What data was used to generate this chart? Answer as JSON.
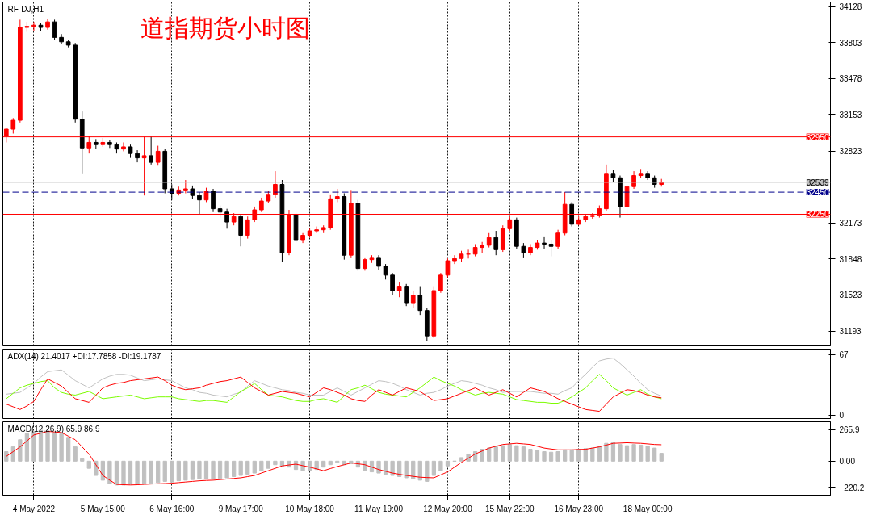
{
  "chart_data": [
    {
      "type": "candlestick",
      "title": "道指期货小时图",
      "annotations": [
        "RF-DJ,H1"
      ],
      "categories": [
        null,
        null,
        null,
        null,
        null,
        null,
        null,
        null,
        null,
        null,
        null,
        null,
        null,
        null,
        null,
        null,
        null,
        null,
        null,
        null,
        null,
        null,
        null,
        null,
        null,
        null,
        null,
        null,
        null,
        null,
        null,
        null,
        null,
        null,
        null,
        null,
        null,
        null,
        null,
        null,
        null,
        null,
        null,
        null,
        null,
        null,
        null,
        null,
        null,
        null,
        null,
        null,
        null,
        null,
        null,
        null,
        null,
        null,
        null,
        null,
        null,
        null,
        null,
        null,
        null,
        null,
        null,
        null,
        null,
        null,
        null,
        null,
        null,
        null,
        null,
        null,
        null,
        null,
        null,
        null,
        null,
        null,
        null,
        null,
        null,
        null,
        null,
        null,
        null,
        null,
        null,
        null,
        null,
        null,
        null,
        null,
        null,
        null,
        null,
        null,
        null,
        null,
        null,
        null,
        null,
        null,
        null,
        null,
        null,
        null,
        null,
        null,
        null,
        null,
        null,
        null,
        null,
        null,
        null,
        null
      ],
      "ohlc": [
        [
          32960,
          33030,
          32900,
          33020
        ],
        [
          33020,
          33120,
          32980,
          33100
        ],
        [
          33100,
          34010,
          33080,
          33940
        ],
        [
          33940,
          33990,
          33900,
          33950
        ],
        [
          33950,
          33990,
          33910,
          33960
        ],
        [
          33960,
          33980,
          33910,
          33940
        ],
        [
          33940,
          34020,
          33920,
          33990
        ],
        [
          33990,
          34010,
          33830,
          33850
        ],
        [
          33850,
          33880,
          33790,
          33810
        ],
        [
          33810,
          33830,
          33760,
          33780
        ],
        [
          33780,
          33800,
          33080,
          33110
        ],
        [
          33110,
          33180,
          32620,
          32850
        ],
        [
          32850,
          32960,
          32800,
          32900
        ],
        [
          32900,
          32930,
          32840,
          32880
        ],
        [
          32880,
          32940,
          32860,
          32900
        ],
        [
          32900,
          32920,
          32850,
          32880
        ],
        [
          32880,
          32900,
          32800,
          32840
        ],
        [
          32840,
          32900,
          32820,
          32860
        ],
        [
          32860,
          32880,
          32760,
          32800
        ],
        [
          32800,
          32830,
          32720,
          32760
        ],
        [
          32760,
          32950,
          32420,
          32780
        ],
        [
          32780,
          32960,
          32700,
          32720
        ],
        [
          32720,
          32870,
          32690,
          32820
        ],
        [
          32820,
          32840,
          32440,
          32480
        ],
        [
          32480,
          32520,
          32380,
          32440
        ],
        [
          32440,
          32500,
          32420,
          32470
        ],
        [
          32470,
          32560,
          32440,
          32480
        ],
        [
          32480,
          32510,
          32390,
          32420
        ],
        [
          32420,
          32450,
          32250,
          32380
        ],
        [
          32380,
          32490,
          32360,
          32460
        ],
        [
          32460,
          32480,
          32270,
          32300
        ],
        [
          32300,
          32330,
          32220,
          32270
        ],
        [
          32270,
          32300,
          32120,
          32180
        ],
        [
          32180,
          32260,
          32150,
          32230
        ],
        [
          32230,
          32250,
          31960,
          32060
        ],
        [
          32060,
          32230,
          32030,
          32200
        ],
        [
          32200,
          32320,
          32180,
          32290
        ],
        [
          32290,
          32400,
          32270,
          32370
        ],
        [
          32370,
          32460,
          32350,
          32430
        ],
        [
          32430,
          32640,
          32400,
          32520
        ],
        [
          32520,
          32560,
          31820,
          31900
        ],
        [
          31900,
          32290,
          31880,
          32250
        ],
        [
          32250,
          32270,
          31990,
          32020
        ],
        [
          32020,
          32080,
          31990,
          32060
        ],
        [
          32060,
          32120,
          32040,
          32100
        ],
        [
          32100,
          32140,
          32080,
          32110
        ],
        [
          32110,
          32150,
          32080,
          32130
        ],
        [
          32130,
          32430,
          32110,
          32390
        ],
        [
          32390,
          32480,
          32360,
          32410
        ],
        [
          32410,
          32440,
          31840,
          31880
        ],
        [
          31880,
          32470,
          31860,
          32350
        ],
        [
          32350,
          32380,
          31740,
          31760
        ],
        [
          31760,
          31860,
          31740,
          31840
        ],
        [
          31840,
          31880,
          31810,
          31860
        ],
        [
          31860,
          31880,
          31750,
          31780
        ],
        [
          31780,
          31800,
          31660,
          31700
        ],
        [
          31700,
          31720,
          31520,
          31560
        ],
        [
          31560,
          31640,
          31500,
          31600
        ],
        [
          31600,
          31620,
          31420,
          31450
        ],
        [
          31450,
          31560,
          31400,
          31520
        ],
        [
          31520,
          31600,
          31340,
          31380
        ],
        [
          31380,
          31400,
          31100,
          31150
        ],
        [
          31150,
          31600,
          31130,
          31560
        ],
        [
          31560,
          31720,
          31540,
          31700
        ],
        [
          31700,
          31850,
          31680,
          31830
        ],
        [
          31830,
          31880,
          31800,
          31850
        ],
        [
          31850,
          31920,
          31820,
          31890
        ],
        [
          31890,
          31930,
          31850,
          31890
        ],
        [
          31890,
          31980,
          31870,
          31950
        ],
        [
          31950,
          32000,
          31900,
          31970
        ],
        [
          31970,
          32080,
          31950,
          32040
        ],
        [
          32040,
          32100,
          31880,
          31930
        ],
        [
          31930,
          32150,
          31910,
          32120
        ],
        [
          32120,
          32230,
          32100,
          32200
        ],
        [
          32200,
          32220,
          31940,
          31960
        ],
        [
          31960,
          31990,
          31860,
          31900
        ],
        [
          31900,
          31980,
          31880,
          31950
        ],
        [
          31950,
          32020,
          31930,
          31990
        ],
        [
          31990,
          32050,
          31940,
          31980
        ],
        [
          31980,
          32020,
          31870,
          31960
        ],
        [
          31960,
          32110,
          31940,
          32080
        ],
        [
          32080,
          32450,
          32060,
          32340
        ],
        [
          32340,
          32360,
          32140,
          32160
        ],
        [
          32160,
          32230,
          32150,
          32200
        ],
        [
          32200,
          32250,
          32180,
          32230
        ],
        [
          32230,
          32260,
          32210,
          32240
        ],
        [
          32240,
          32330,
          32220,
          32300
        ],
        [
          32300,
          32700,
          32280,
          32620
        ],
        [
          32620,
          32650,
          32540,
          32580
        ],
        [
          32580,
          32600,
          32220,
          32320
        ],
        [
          32320,
          32520,
          32230,
          32500
        ],
        [
          32500,
          32640,
          32480,
          32600
        ],
        [
          32600,
          32660,
          32580,
          32620
        ],
        [
          32620,
          32640,
          32560,
          32580
        ],
        [
          32580,
          32600,
          32490,
          32520
        ],
        [
          32520,
          32570,
          32500,
          32539
        ],
        null,
        null,
        null,
        null,
        null,
        null,
        null,
        null,
        null,
        null,
        null,
        null,
        null,
        null,
        null,
        null,
        null,
        null,
        null,
        null,
        null,
        null,
        null,
        null
      ],
      "ylim": [
        31060,
        34170
      ],
      "yticks": [
        31193,
        31523,
        31848,
        32173,
        32823,
        33153,
        33478,
        33803,
        34128
      ],
      "ref_lines": [
        {
          "axis": "y",
          "value": 32950,
          "label": "32950",
          "color": "#ff0000",
          "line_style": "solid"
        },
        {
          "axis": "y",
          "value": 32539,
          "label": "32539",
          "color": "#c0c0c0",
          "line_style": "solid"
        },
        {
          "axis": "y",
          "value": 32450,
          "label": "32450",
          "color": "#00008b",
          "line_style": "dashed"
        },
        {
          "axis": "y",
          "value": 32250,
          "label": "32250",
          "color": "#ff0000",
          "line_style": "solid"
        }
      ],
      "grid": "x",
      "tick_labels": "y"
    },
    {
      "type": "line",
      "annotations": [
        "ADX(14) 21.4017 +DI:17.7858 -DI:19.1787"
      ],
      "categories": [
        null,
        null,
        null,
        null,
        null,
        null,
        null,
        null,
        null,
        null,
        null,
        null,
        null,
        null,
        null,
        null,
        null,
        null,
        null,
        null,
        null,
        null,
        null,
        null,
        null,
        null,
        null,
        null,
        null,
        null,
        null,
        null,
        null,
        null,
        null,
        null,
        null,
        null,
        null,
        null,
        null,
        null,
        null,
        null,
        null,
        null,
        null,
        null,
        null,
        null,
        null,
        null,
        null,
        null,
        null,
        null,
        null,
        null,
        null,
        null,
        null,
        null,
        null,
        null,
        null,
        null,
        null,
        null,
        null,
        null,
        null,
        null,
        null,
        null,
        null,
        null,
        null,
        null,
        null,
        null,
        null,
        null,
        null,
        null,
        null,
        null,
        null,
        null,
        null,
        null,
        null,
        null,
        null,
        null,
        null,
        null,
        null,
        null,
        null,
        null,
        null,
        null,
        null,
        null,
        null,
        null,
        null,
        null,
        null,
        null,
        null,
        null,
        null,
        null,
        null,
        null,
        null,
        null,
        null,
        null
      ],
      "series": [
        {
          "color": "#c0c0c0",
          "values": [
            23,
            24,
            25,
            30,
            35,
            42,
            48,
            49,
            50,
            44,
            38,
            34,
            30,
            35,
            40,
            43,
            45,
            45,
            44,
            41,
            38,
            39,
            40,
            39,
            38,
            34,
            30,
            28,
            25,
            24,
            22,
            21,
            20,
            23,
            25,
            32,
            38,
            35,
            32,
            30,
            28,
            27,
            25,
            24,
            22,
            22,
            22,
            26,
            30,
            26,
            22,
            26,
            30,
            34,
            38,
            37,
            35,
            32,
            28,
            25,
            22,
            24,
            25,
            28,
            32,
            35,
            38,
            37,
            35,
            33,
            30,
            28,
            25,
            26,
            26,
            26,
            26,
            25,
            24,
            24,
            23,
            27,
            30,
            38,
            45,
            53,
            60,
            62,
            63,
            57,
            50,
            43,
            35,
            28,
            24,
            21,
            null,
            null,
            null,
            null,
            null,
            null,
            null,
            null,
            null,
            null,
            null,
            null,
            null,
            null,
            null,
            null,
            null,
            null,
            null,
            null,
            null,
            null,
            null,
            null
          ]
        },
        {
          "color": "#7cfc00",
          "values": [
            18,
            24,
            30,
            33,
            35,
            37,
            38,
            30,
            25,
            23,
            22,
            24,
            26,
            22,
            18,
            19,
            20,
            21,
            22,
            20,
            18,
            19,
            20,
            20,
            20,
            18,
            17,
            16,
            15,
            16,
            16,
            15,
            14,
            20,
            26,
            30,
            35,
            28,
            22,
            21,
            20,
            18,
            16,
            15,
            15,
            17,
            18,
            16,
            14,
            21,
            28,
            30,
            33,
            29,
            25,
            23,
            22,
            21,
            20,
            25,
            30,
            36,
            42,
            38,
            35,
            32,
            28,
            25,
            22,
            24,
            25,
            24,
            23,
            20,
            17,
            16,
            15,
            14,
            14,
            13,
            13,
            16,
            20,
            25,
            30,
            38,
            45,
            38,
            30,
            26,
            22,
            25,
            28,
            23,
            20,
            18,
            null,
            null,
            null,
            null,
            null,
            null,
            null,
            null,
            null,
            null,
            null,
            null,
            null,
            null,
            null,
            null,
            null,
            null,
            null,
            null,
            null,
            null,
            null,
            null
          ]
        },
        {
          "color": "#ff0000",
          "values": [
            12,
            9,
            6,
            10,
            15,
            28,
            40,
            36,
            32,
            25,
            18,
            16,
            14,
            22,
            30,
            33,
            35,
            36,
            38,
            39,
            40,
            41,
            42,
            38,
            33,
            30,
            28,
            29,
            30,
            33,
            35,
            37,
            38,
            40,
            42,
            36,
            30,
            26,
            22,
            24,
            26,
            25,
            24,
            22,
            20,
            25,
            30,
            28,
            25,
            22,
            18,
            16,
            15,
            22,
            28,
            25,
            22,
            26,
            30,
            28,
            26,
            21,
            16,
            17,
            18,
            21,
            24,
            27,
            30,
            26,
            22,
            25,
            28,
            24,
            20,
            25,
            30,
            28,
            26,
            22,
            18,
            15,
            12,
            9,
            6,
            5,
            4,
            12,
            20,
            24,
            28,
            27,
            25,
            22,
            20,
            19,
            null,
            null,
            null,
            null,
            null,
            null,
            null,
            null,
            null,
            null,
            null,
            null,
            null,
            null,
            null,
            null,
            null,
            null,
            null,
            null,
            null,
            null,
            null,
            null
          ]
        }
      ],
      "ylim": [
        -4,
        73
      ],
      "yticks": [
        0,
        67
      ],
      "grid": "x",
      "tick_labels": "y"
    },
    {
      "type": "bar",
      "annotations": [
        "MACD(12,26,9) 65.9 86.9"
      ],
      "categories": [
        null,
        null,
        null,
        null,
        "4 May 2022",
        null,
        null,
        null,
        null,
        null,
        null,
        null,
        null,
        null,
        "5 May 15:00",
        null,
        null,
        null,
        null,
        null,
        null,
        null,
        null,
        null,
        "6 May 16:00",
        null,
        null,
        null,
        null,
        null,
        null,
        null,
        null,
        null,
        "9 May 17:00",
        null,
        null,
        null,
        null,
        null,
        null,
        null,
        null,
        null,
        "10 May 18:00",
        null,
        null,
        null,
        null,
        null,
        null,
        null,
        null,
        null,
        "11 May 19:00",
        null,
        null,
        null,
        null,
        null,
        null,
        null,
        null,
        null,
        "12 May 20:00",
        null,
        null,
        null,
        null,
        null,
        null,
        null,
        null,
        "15 May 22:00",
        null,
        null,
        null,
        null,
        null,
        null,
        null,
        null,
        null,
        "16 May 23:00",
        null,
        null,
        null,
        null,
        null,
        null,
        null,
        null,
        null,
        "18 May 00:00",
        null,
        null,
        null,
        null,
        null,
        null,
        null,
        null,
        null,
        null,
        null,
        null,
        null,
        null,
        null,
        null,
        null,
        null,
        null,
        null,
        null,
        null,
        null,
        null,
        null,
        null
      ],
      "series": [
        {
          "type": "bar",
          "color": "#c0c0c0",
          "values": [
            80,
            120,
            180,
            230,
            250,
            260,
            255,
            240,
            230,
            200,
            120,
            20,
            -60,
            -120,
            -160,
            -190,
            -200,
            -200,
            -195,
            -190,
            -190,
            -185,
            -180,
            -170,
            -175,
            -165,
            -160,
            -155,
            -150,
            -150,
            -150,
            -145,
            -140,
            -130,
            -120,
            -110,
            -100,
            -80,
            -60,
            -30,
            -40,
            -50,
            -70,
            -80,
            -80,
            -70,
            -50,
            -30,
            -10,
            -30,
            -20,
            -50,
            -80,
            -90,
            -100,
            -110,
            -120,
            -130,
            -140,
            -150,
            -160,
            -170,
            -120,
            -80,
            -40,
            0,
            30,
            60,
            80,
            100,
            110,
            120,
            130,
            140,
            130,
            120,
            100,
            90,
            80,
            75,
            80,
            95,
            95,
            100,
            105,
            110,
            120,
            150,
            160,
            140,
            130,
            140,
            135,
            125,
            110,
            66,
            null,
            null,
            null,
            null,
            null,
            null,
            null,
            null,
            null,
            null,
            null,
            null,
            null,
            null,
            null,
            null,
            null,
            null,
            null,
            null,
            null,
            null,
            null,
            null
          ]
        },
        {
          "type": "line",
          "color": "#ff0000",
          "values": [
            40,
            80,
            120,
            170,
            220,
            235,
            250,
            245,
            240,
            210,
            180,
            120,
            60,
            -30,
            -120,
            -160,
            -195,
            -198,
            -200,
            -198,
            -195,
            -192,
            -190,
            -188,
            -185,
            -180,
            -175,
            -170,
            -165,
            -162,
            -160,
            -155,
            -150,
            -145,
            -140,
            -130,
            -120,
            -100,
            -80,
            -60,
            -40,
            -32,
            -25,
            -38,
            -50,
            -65,
            -80,
            -62,
            -45,
            -30,
            -15,
            -22,
            -30,
            -50,
            -70,
            -85,
            -100,
            -110,
            -120,
            -128,
            -135,
            -138,
            -140,
            -115,
            -90,
            -50,
            -10,
            25,
            60,
            85,
            110,
            125,
            140,
            145,
            150,
            145,
            140,
            125,
            110,
            102,
            95,
            95,
            95,
            98,
            100,
            110,
            120,
            135,
            150,
            152,
            155,
            152,
            150,
            145,
            140,
            138,
            null,
            null,
            null,
            null,
            null,
            null,
            null,
            null,
            null,
            null,
            null,
            null,
            null,
            null,
            null,
            null,
            null,
            null,
            null,
            null,
            null,
            null,
            null,
            null
          ]
        }
      ],
      "ylim": [
        -286,
        331
      ],
      "yticks": [
        -220.2,
        {
          "value": 0,
          "label": "0.00"
        },
        265.9
      ],
      "grid": "x"
    }
  ]
}
